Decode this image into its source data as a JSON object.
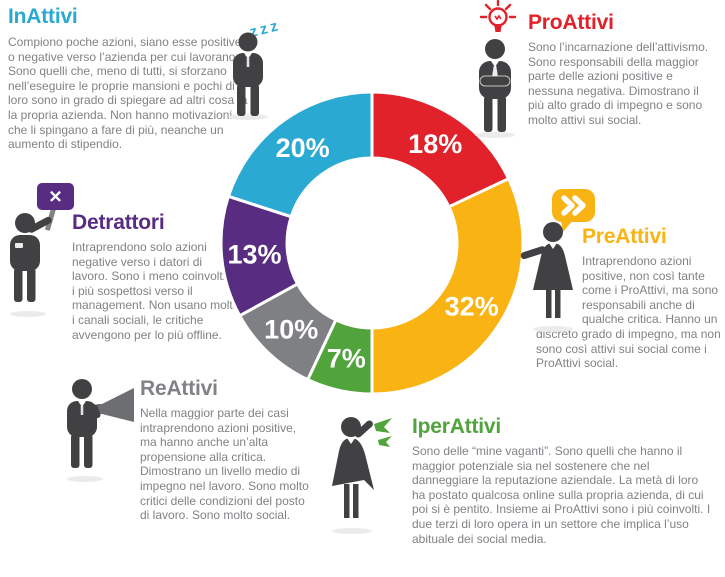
{
  "palette": {
    "cyan": "#2AA9D2",
    "red": "#E1222A",
    "yellow": "#F9B313",
    "green": "#50A43B",
    "gray": "#7E8083",
    "purple": "#582C80",
    "body_text": "#808285",
    "figure_dark": "#414042"
  },
  "sections": {
    "inattivi": {
      "title": "InAttivi",
      "text": "Compiono poche azioni, siano esse positive o negative verso l’azienda per cui lavorano. Sono quelli che, meno di tutti, si sforzano nell’eseguire le proprie mansioni e pochi di loro sono in grado di spiegare ad altri cosa fa la propria azienda. Non hanno motivazioni che li spingano a fare di più, neanche un aumento di stipendio."
    },
    "proattivi": {
      "title": "ProAttivi",
      "text": "Sono l’incarnazione dell’attivismo. Sono responsabili della maggior parte delle azioni positive e nessuna negativa. Dimostrano il più alto grado di impegno e sono molto attivi sui social."
    },
    "preattivi": {
      "title": "PreAttivi",
      "text": "Intraprendono azioni positive, non così tante come i ProAttivi, ma sono responsabili anche di qualche critica. Hanno un discreto grado di impegno, ma non sono così attivi sui social come i ProAttivi social."
    },
    "iperattivi": {
      "title": "IperAttivi",
      "text": "Sono delle “mine vaganti”. Sono quelli che hanno il maggior potenziale sia nel sostenere che nel danneggiare la reputazione aziendale. La metà di loro ha postato qualcosa online sulla propria azienda, di cui poi si è pentito. Insieme ai ProAttivi sono i più coinvolti. I due terzi di loro opera in un settore che implica l’uso abituale dei social media."
    },
    "reattivi": {
      "title": "ReAttivi",
      "text": "Nella maggior parte dei casi intraprendono azioni positive, ma hanno anche un’alta propensione alla critica. Dimostrano un livello medio di impegno nel lavoro. Sono molto critici delle condizioni del posto di lavoro. Sono molto social."
    },
    "detrattori": {
      "title": "Detrattori",
      "text": "Intraprendono solo azioni negative verso i datori di lavoro. Sono i meno coinvolti e i più sospettosi verso il management. Non usano molto i canali sociali, le critiche avvengono per lo più offline."
    }
  },
  "icons": {
    "zzz": "zzz",
    "x_sign": "✕",
    "chevrons": "»"
  },
  "chart_data": {
    "type": "pie",
    "variant": "donut",
    "unit": "percent",
    "direction": "clockwise",
    "start_angle_deg": 0,
    "inner_radius_ratio": 0.56,
    "segments": [
      {
        "label": "ProAttivi",
        "value": 18,
        "color": "#E1222A"
      },
      {
        "label": "PreAttivi",
        "value": 32,
        "color": "#F9B313"
      },
      {
        "label": "IperAttivi",
        "value": 7,
        "color": "#50A43B"
      },
      {
        "label": "ReAttivi",
        "value": 10,
        "color": "#7E8083"
      },
      {
        "label": "Detrattori",
        "value": 13,
        "color": "#582C80"
      },
      {
        "label": "InAttivi",
        "value": 20,
        "color": "#2AA9D2"
      }
    ],
    "labels": [
      "18%",
      "32%",
      "7%",
      "10%",
      "13%",
      "20%"
    ]
  }
}
